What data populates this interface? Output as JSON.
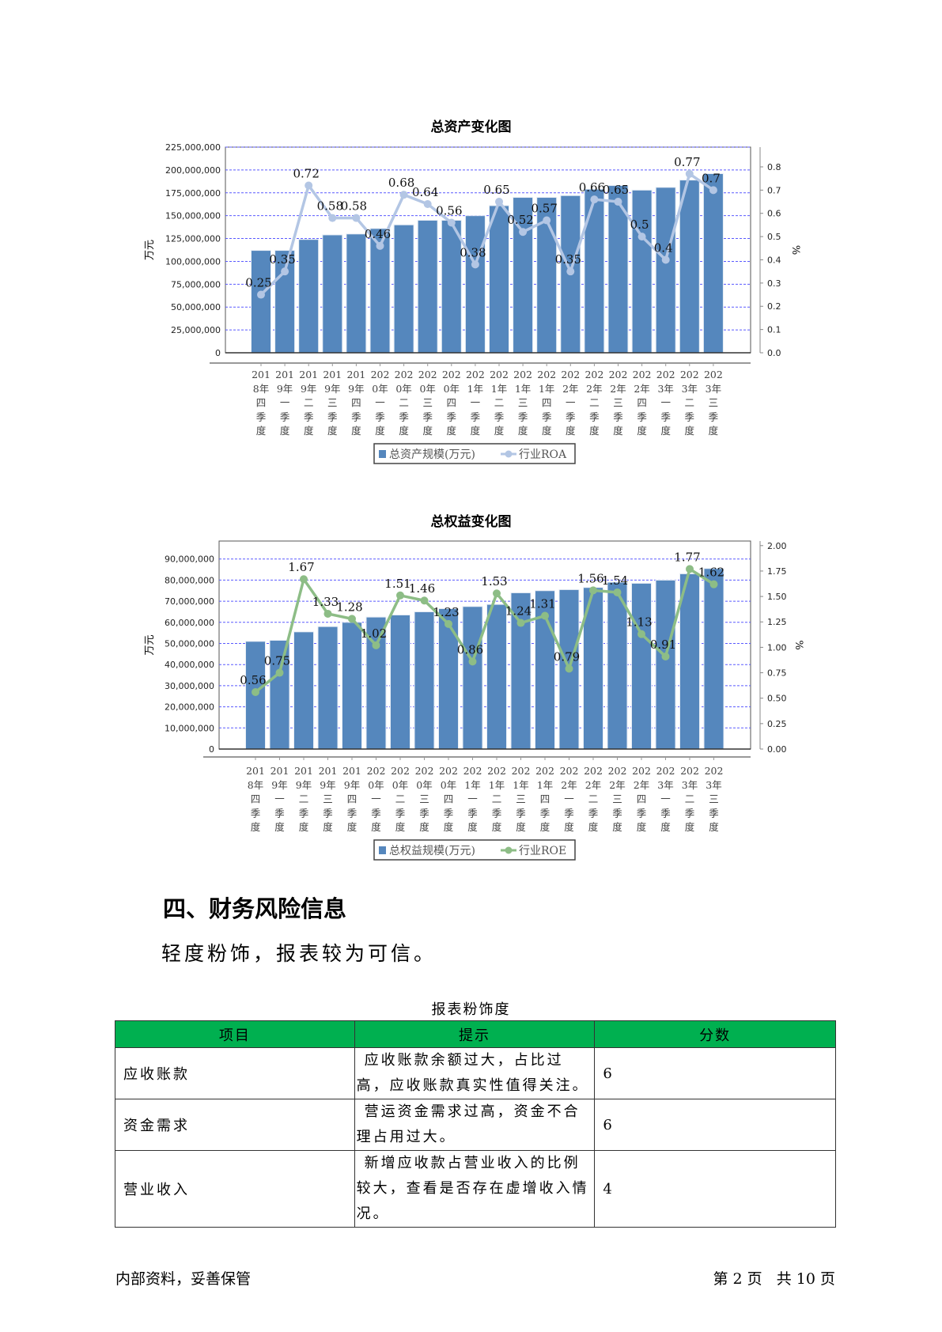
{
  "chart_data": [
    {
      "type": "bar",
      "title": "总资产变化图",
      "ylabel": "万元",
      "y2label": "%",
      "categories": [
        "2018年四季度",
        "2019年一季度",
        "2019年二季度",
        "2019年三季度",
        "2019年四季度",
        "2020年一季度",
        "2020年二季度",
        "2020年三季度",
        "2020年四季度",
        "2021年一季度",
        "2021年二季度",
        "2021年三季度",
        "2021年四季度",
        "2022年一季度",
        "2022年二季度",
        "2022年三季度",
        "2022年四季度",
        "2023年一季度",
        "2023年二季度",
        "2023年三季度"
      ],
      "ylim": [
        0,
        225000000
      ],
      "y2lim": [
        0,
        0.885
      ],
      "yticks": [
        0,
        25000000,
        50000000,
        75000000,
        100000000,
        125000000,
        150000000,
        175000000,
        200000000,
        225000000
      ],
      "y2ticks": [
        "0.0",
        "0.1",
        "0.2",
        "0.3",
        "0.4",
        "0.5",
        "0.6",
        "0.7",
        "0.8"
      ],
      "grid": true,
      "legend_placement": "bottom",
      "series": [
        {
          "name": "总资产规模(万元)",
          "type": "bar",
          "axis": "left",
          "color": "#5587bd",
          "values": [
            112000000,
            112000000,
            124000000,
            129000000,
            130000000,
            136000000,
            140000000,
            145000000,
            145000000,
            150000000,
            161000000,
            170000000,
            170000000,
            172000000,
            179000000,
            183000000,
            178000000,
            181000000,
            189000000,
            196000000
          ]
        },
        {
          "name": "行业ROA",
          "type": "line",
          "axis": "right",
          "color": "#b3c6e4",
          "values": [
            0.25,
            0.35,
            0.72,
            0.58,
            0.58,
            0.46,
            0.68,
            0.64,
            0.56,
            0.38,
            0.65,
            0.52,
            0.57,
            0.35,
            0.66,
            0.65,
            0.5,
            0.4,
            0.77,
            0.7
          ]
        }
      ]
    },
    {
      "type": "bar",
      "title": "总权益变化图",
      "ylabel": "万元",
      "y2label": "%",
      "categories": [
        "2018年四季度",
        "2019年一季度",
        "2019年二季度",
        "2019年三季度",
        "2019年四季度",
        "2020年一季度",
        "2020年二季度",
        "2020年三季度",
        "2020年四季度",
        "2021年一季度",
        "2021年二季度",
        "2021年三季度",
        "2021年四季度",
        "2022年一季度",
        "2022年二季度",
        "2022年三季度",
        "2022年四季度",
        "2023年一季度",
        "2023年二季度",
        "2023年三季度"
      ],
      "ylim": [
        0,
        98500000
      ],
      "y2lim": [
        0,
        2.045
      ],
      "yticks": [
        0,
        10000000,
        20000000,
        30000000,
        40000000,
        50000000,
        60000000,
        70000000,
        80000000,
        90000000
      ],
      "y2ticks": [
        "0.00",
        "0.25",
        "0.50",
        "0.75",
        "1.00",
        "1.25",
        "1.50",
        "1.75",
        "2.00"
      ],
      "grid": true,
      "legend_placement": "bottom",
      "series": [
        {
          "name": "总权益规模(万元)",
          "type": "bar",
          "axis": "left",
          "color": "#5587bd",
          "values": [
            51000000,
            51500000,
            55500000,
            58000000,
            60000000,
            62500000,
            63500000,
            65000000,
            66500000,
            67500000,
            68500000,
            74000000,
            75000000,
            75500000,
            76500000,
            79000000,
            78500000,
            80000000,
            83000000,
            85500000
          ]
        },
        {
          "name": "行业ROE",
          "type": "line",
          "axis": "right",
          "color": "#8dbd86",
          "values": [
            0.56,
            0.75,
            1.67,
            1.33,
            1.28,
            1.02,
            1.51,
            1.46,
            1.23,
            0.86,
            1.53,
            1.24,
            1.31,
            0.79,
            1.56,
            1.54,
            1.13,
            0.91,
            1.77,
            1.62
          ]
        }
      ]
    }
  ],
  "section": {
    "heading": "四、财务风险信息",
    "summary": "轻度粉饰，报表较为可信。"
  },
  "table": {
    "caption": "报表粉饰度",
    "header_color": "#00b050",
    "columns": [
      "项目",
      "提示",
      "分数"
    ],
    "rows": [
      {
        "item": "应收账款",
        "tip": "应收账款余额过大，占比过高，应收账款真实性值得关注。",
        "score": "6"
      },
      {
        "item": "资金需求",
        "tip": "营运资金需求过高，资金不合理占用过大。",
        "score": "6"
      },
      {
        "item": "营业收入",
        "tip": "新增应收款占营业收入的比例较大，查看是否存在虚增收入情况。",
        "score": "4"
      }
    ]
  },
  "footer": {
    "left": "内部资料，妥善保管",
    "right": "第 2 页   共 10 页"
  }
}
